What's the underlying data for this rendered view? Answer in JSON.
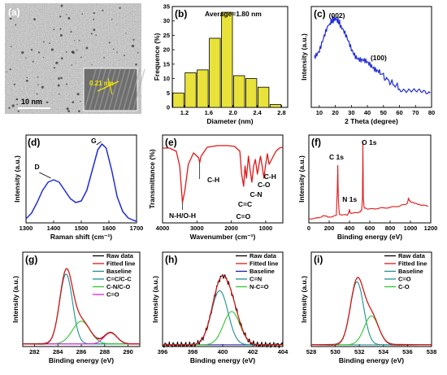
{
  "colors": {
    "blue": "#1f2bd8",
    "red": "#e01818",
    "bar": "#e8e23a",
    "teal": "#1f8f8f",
    "green": "#2ec82e",
    "magenta": "#e020e0",
    "darkblue": "#1a1aa8",
    "black": "#000000"
  },
  "panels": {
    "a": {
      "label": "(a)",
      "scalebar": "10 nm",
      "inset_label": "0.21 nm",
      "image_semantic": "tem-micrograph"
    },
    "b": {
      "label": "(b)",
      "annotation": "Average=1.80 nm",
      "chart_data": {
        "type": "bar",
        "xlabel": "Diameter (nm)",
        "ylabel": "Frequence (%)",
        "xlim": [
          1.0,
          2.9
        ],
        "ylim": [
          0,
          35
        ],
        "xticks": [
          "1.2",
          "1.6",
          "2.0",
          "2.4",
          "2.8"
        ],
        "xtick_values": [
          1.2,
          1.6,
          2.0,
          2.4,
          2.8
        ],
        "yticks": [
          "0",
          "5",
          "10",
          "15",
          "20",
          "25",
          "30",
          "35"
        ],
        "ytick_values": [
          0,
          5,
          10,
          15,
          20,
          25,
          30,
          35
        ],
        "x": [
          1.1,
          1.3,
          1.5,
          1.7,
          1.9,
          2.1,
          2.3,
          2.5,
          2.7
        ],
        "values": [
          5,
          12,
          13,
          24,
          33,
          11,
          10,
          7,
          1
        ]
      }
    },
    "c": {
      "label": "(c)",
      "peak1": "(002)",
      "peak2": "(100)",
      "chart_data": {
        "type": "line",
        "xlabel": "2 Theta (degree)",
        "ylabel": "Intensity (a.u.)",
        "xlim": [
          5,
          80
        ],
        "xticks": [
          "10",
          "20",
          "30",
          "40",
          "50",
          "60",
          "70",
          "80"
        ],
        "xtick_values": [
          10,
          20,
          30,
          40,
          50,
          60,
          70,
          80
        ],
        "x": [
          7,
          10,
          13,
          16,
          18,
          20,
          22,
          24,
          27,
          30,
          33,
          36,
          39,
          42,
          45,
          48,
          52,
          56,
          60,
          65,
          70,
          75,
          80
        ],
        "y": [
          0.55,
          0.62,
          0.75,
          0.88,
          0.93,
          0.95,
          0.92,
          0.85,
          0.74,
          0.63,
          0.55,
          0.5,
          0.48,
          0.46,
          0.42,
          0.37,
          0.3,
          0.25,
          0.21,
          0.18,
          0.16,
          0.15,
          0.15
        ]
      }
    },
    "d": {
      "label": "(d)",
      "peak_d": "D",
      "peak_g": "G",
      "chart_data": {
        "type": "line",
        "xlabel": "Raman shift (cm⁻¹)",
        "ylabel": "Intensity (a.u.)",
        "xlim": [
          1300,
          1700
        ],
        "xticks": [
          "1300",
          "1400",
          "1500",
          "1600",
          "1700"
        ],
        "xtick_values": [
          1300,
          1400,
          1500,
          1600,
          1700
        ],
        "x": [
          1300,
          1320,
          1340,
          1360,
          1380,
          1400,
          1420,
          1440,
          1460,
          1480,
          1500,
          1520,
          1540,
          1560,
          1575,
          1590,
          1610,
          1630,
          1650,
          1670,
          1690,
          1700
        ],
        "y": [
          0.05,
          0.12,
          0.25,
          0.4,
          0.5,
          0.53,
          0.5,
          0.4,
          0.3,
          0.25,
          0.27,
          0.4,
          0.65,
          0.9,
          0.97,
          0.92,
          0.65,
          0.32,
          0.14,
          0.06,
          0.03,
          0.02
        ]
      }
    },
    "e": {
      "label": "(e)",
      "annotations": [
        "C-H",
        "N-H/O-H",
        "C=C",
        "C-N",
        "C-O",
        "C-H",
        "C=O"
      ],
      "chart_data": {
        "type": "line",
        "xlabel": "Wavenumber (cm⁻¹)",
        "ylabel": "Transmittance (%)",
        "xlim": [
          4000,
          500
        ],
        "xticks": [
          "4000",
          "3000",
          "2000",
          "1000"
        ],
        "xtick_values": [
          4000,
          3000,
          2000,
          1000
        ],
        "x": [
          4000,
          3800,
          3600,
          3500,
          3420,
          3350,
          3250,
          3100,
          2950,
          2920,
          2880,
          2700,
          2400,
          2100,
          1900,
          1750,
          1700,
          1640,
          1600,
          1560,
          1500,
          1450,
          1400,
          1350,
          1300,
          1240,
          1150,
          1100,
          1050,
          1000,
          950,
          900,
          800,
          700,
          600,
          500
        ],
        "y": [
          0.92,
          0.92,
          0.88,
          0.7,
          0.25,
          0.4,
          0.72,
          0.86,
          0.8,
          0.74,
          0.82,
          0.93,
          0.95,
          0.95,
          0.94,
          0.88,
          0.6,
          0.45,
          0.7,
          0.55,
          0.82,
          0.65,
          0.5,
          0.7,
          0.78,
          0.6,
          0.82,
          0.7,
          0.55,
          0.72,
          0.85,
          0.72,
          0.8,
          0.88,
          0.92,
          0.93
        ]
      }
    },
    "f": {
      "label": "(f)",
      "peak_c": "C 1s",
      "peak_n": "N 1s",
      "peak_o": "O 1s",
      "chart_data": {
        "type": "line",
        "xlabel": "Binding energy (eV)",
        "ylabel": "Intensity (a.u.)",
        "xlim": [
          0,
          1200
        ],
        "xticks": [
          "0",
          "200",
          "400",
          "600",
          "800",
          "1000",
          "1200"
        ],
        "xtick_values": [
          0,
          200,
          400,
          600,
          800,
          1000,
          1200
        ],
        "x": [
          0,
          100,
          150,
          200,
          270,
          280,
          285,
          290,
          300,
          380,
          395,
          400,
          405,
          420,
          500,
          520,
          528,
          532,
          536,
          545,
          600,
          700,
          800,
          900,
          970,
          980,
          990,
          1000,
          1050,
          1100,
          1200
        ],
        "y": [
          0.05,
          0.06,
          0.09,
          0.07,
          0.09,
          0.4,
          0.7,
          0.3,
          0.1,
          0.1,
          0.14,
          0.16,
          0.13,
          0.12,
          0.13,
          0.16,
          0.3,
          1.0,
          0.3,
          0.18,
          0.17,
          0.18,
          0.19,
          0.21,
          0.24,
          0.3,
          0.28,
          0.26,
          0.24,
          0.22,
          0.2
        ]
      }
    },
    "g": {
      "label": "(g)",
      "legend": [
        "Raw data",
        "Fitted line",
        "Baseline",
        "C=C/C-C",
        "C-N/C-O",
        "C=O"
      ],
      "chart_data": {
        "type": "line",
        "xlabel": "Binding energy (eV)",
        "ylabel": "Intensity (a.u.)",
        "xlim": [
          281,
          291
        ],
        "xticks": [
          "282",
          "284",
          "286",
          "288",
          "290"
        ],
        "xtick_values": [
          282,
          284,
          286,
          288,
          290
        ],
        "components": [
          {
            "center": 284.7,
            "height": 0.8,
            "width": 0.55
          },
          {
            "center": 286.0,
            "height": 0.26,
            "width": 0.75
          },
          {
            "center": 288.5,
            "height": 0.13,
            "width": 0.55
          }
        ],
        "baseline": 0.03
      }
    },
    "h": {
      "label": "(h)",
      "legend": [
        "Raw data",
        "Fitted line",
        "Baseline",
        "C=N",
        "N-C=O"
      ],
      "chart_data": {
        "type": "line",
        "xlabel": "Binding energy (eV)",
        "ylabel": "Intensity (a.u.)",
        "xlim": [
          396,
          404
        ],
        "xticks": [
          "396",
          "398",
          "400",
          "402",
          "404"
        ],
        "xtick_values": [
          396,
          398,
          400,
          402,
          404
        ],
        "components": [
          {
            "center": 399.8,
            "height": 0.62,
            "width": 0.55
          },
          {
            "center": 400.6,
            "height": 0.38,
            "width": 0.55
          }
        ],
        "baseline": 0.02
      }
    },
    "i": {
      "label": "(i)",
      "legend": [
        "Raw data",
        "Fitted line",
        "Baseline",
        "C=O",
        "C-O"
      ],
      "chart_data": {
        "type": "line",
        "xlabel": "Binding energy (eV)",
        "ylabel": "Intensity (a.u.)",
        "xlim": [
          528,
          538
        ],
        "xticks": [
          "528",
          "530",
          "532",
          "534",
          "536",
          "538"
        ],
        "xtick_values": [
          528,
          530,
          532,
          534,
          536,
          538
        ],
        "components": [
          {
            "center": 531.8,
            "height": 0.72,
            "width": 0.55
          },
          {
            "center": 533.0,
            "height": 0.33,
            "width": 0.6
          }
        ],
        "baseline": 0.02
      }
    }
  }
}
